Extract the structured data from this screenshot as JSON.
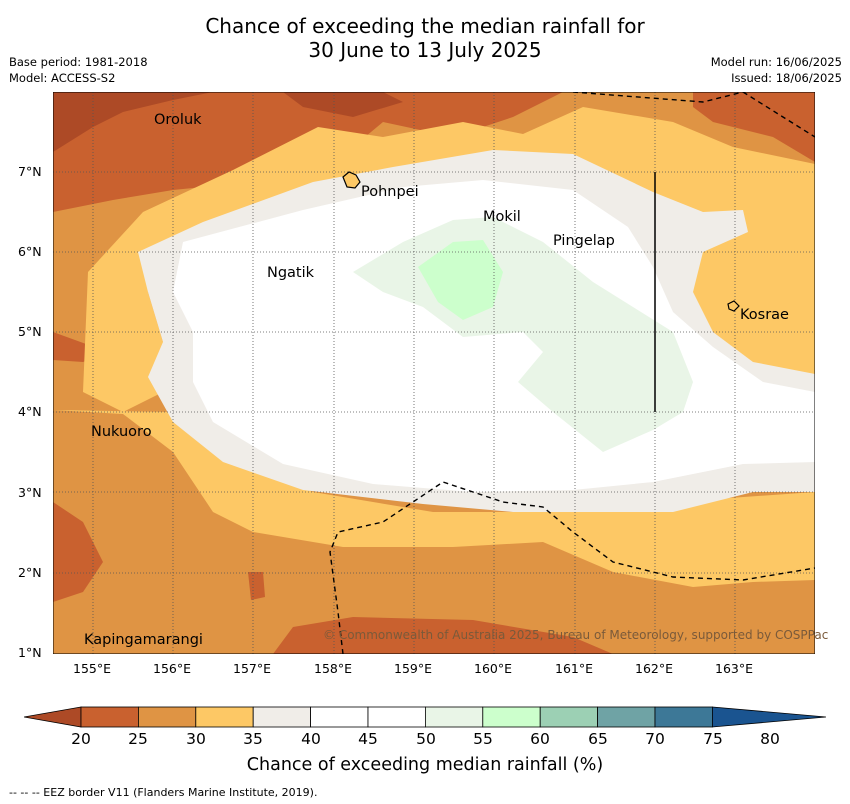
{
  "header": {
    "title_line1": "Chance of exceeding the median rainfall for",
    "title_line2": "30 June to 13 July 2025",
    "base_period": "Base period: 1981-2018",
    "model": "Model: ACCESS-S2",
    "model_run": "Model run: 16/06/2025",
    "issued": "Issued: 18/06/2025"
  },
  "map": {
    "lat_ticks": [
      "1°N",
      "2°N",
      "3°N",
      "4°N",
      "5°N",
      "6°N",
      "7°N"
    ],
    "lon_ticks": [
      "155°E",
      "156°E",
      "157°E",
      "158°E",
      "159°E",
      "160°E",
      "161°E",
      "162°E",
      "163°E"
    ],
    "places": {
      "oroluk": "Oroluk",
      "pohnpei": "Pohnpei",
      "mokil": "Mokil",
      "pingelap": "Pingelap",
      "ngatik": "Ngatik",
      "kosrae": "Kosrae",
      "nukuoro": "Nukuoro",
      "kapingamarangi": "Kapingamarangi"
    },
    "credit": "© Commonwealth of Australia 2025, Bureau of Meteorology, supported by COSPPac"
  },
  "colorbar": {
    "ticks": [
      "20",
      "25",
      "30",
      "35",
      "40",
      "45",
      "50",
      "55",
      "60",
      "65",
      "70",
      "75",
      "80"
    ],
    "colors": [
      "#ad4a26",
      "#c9612f",
      "#df9444",
      "#fdc865",
      "#f0ede8",
      "#ffffff",
      "#ffffff",
      "#e9f5e7",
      "#ccffcc",
      "#9cd0b4",
      "#6fa3a5",
      "#3d7897",
      "#1a5490"
    ],
    "title": "Chance of exceeding median rainfall (%)"
  },
  "footer": {
    "eez": "--  --  -- EEZ border V11 (Flanders Marine Institute, 2019)."
  }
}
